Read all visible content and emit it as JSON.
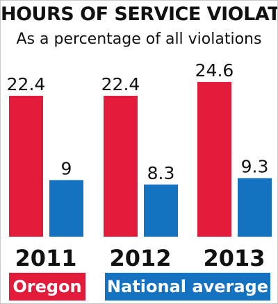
{
  "chart_data": {
    "type": "bar",
    "title": "HOURS OF SERVICE VIOLATIONS",
    "subtitle": "As a percentage of all violations",
    "categories": [
      "2011",
      "2012",
      "2013"
    ],
    "series": [
      {
        "name": "Oregon",
        "values": [
          22.4,
          22.4,
          24.6
        ],
        "color": "#e31b3b"
      },
      {
        "name": "National average",
        "values": [
          9,
          8.3,
          9.3
        ],
        "color": "#1572c0"
      }
    ],
    "value_labels": [
      [
        "22.4",
        "22.4",
        "24.6"
      ],
      [
        "9",
        "8.3",
        "9.3"
      ]
    ],
    "ylim": [
      0,
      30
    ],
    "grid": false,
    "legend_position": "bottom"
  }
}
